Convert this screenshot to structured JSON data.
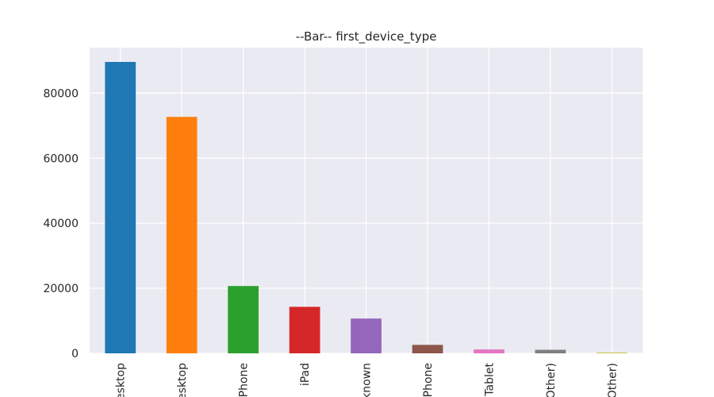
{
  "chart_data": {
    "type": "bar",
    "title": "--Bar-- first_device_type",
    "xlabel": "",
    "ylabel": "",
    "categories": [
      "Mac Desktop",
      "Windows Desktop",
      "iPhone",
      "iPad",
      "Other/Unknown",
      "Android Phone",
      "Android Tablet",
      "Desktop (Other)",
      "SmartPhone (Other)"
    ],
    "tick_labels": [
      "esktop",
      "esktop",
      "Phone",
      "iPad",
      "known",
      "Phone",
      "Tablet",
      "Other)",
      "Other)"
    ],
    "values": [
      89600,
      72700,
      20700,
      14300,
      10700,
      2600,
      1200,
      1100,
      200
    ],
    "colors": [
      "#1f77b4",
      "#ff7f0e",
      "#2ca02c",
      "#d62728",
      "#9467bd",
      "#8c564b",
      "#e377c2",
      "#7f7f7f",
      "#bcbd22"
    ],
    "ylim": [
      0,
      94000
    ],
    "yticks": [
      0,
      20000,
      40000,
      60000,
      80000
    ],
    "grid": true,
    "background": "#eaeaf2",
    "grid_color": "#ffffff"
  }
}
